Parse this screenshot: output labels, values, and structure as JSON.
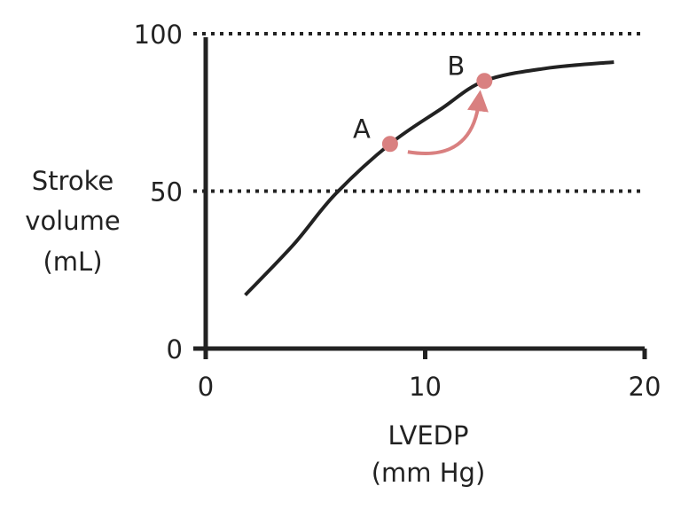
{
  "chart_data": {
    "type": "line",
    "title": "",
    "xlabel": [
      "LVEDP",
      "(mm Hg)"
    ],
    "ylabel": [
      "Stroke",
      "volume",
      "(mL)"
    ],
    "xlim": [
      0,
      20
    ],
    "ylim": [
      0,
      100
    ],
    "xticks": [
      0,
      10,
      20
    ],
    "yticks": [
      0,
      50,
      100
    ],
    "xtick_labels": [
      "0",
      "10",
      "20"
    ],
    "ytick_labels": [
      "0",
      "50",
      "100"
    ],
    "reference_lines": [
      50,
      100
    ],
    "grid": false,
    "series": [
      {
        "x": [
          1.8,
          4.0,
          5.9,
          8.4,
          10.7,
          12.7,
          15.5,
          18.6
        ],
        "y": [
          17,
          33,
          49,
          65,
          76,
          85,
          89,
          91
        ]
      }
    ],
    "points": [
      {
        "label": "A",
        "x": 8.4,
        "y": 65
      },
      {
        "label": "B",
        "x": 12.7,
        "y": 85
      }
    ],
    "annotation_arrow": {
      "from": "A",
      "to": "B"
    },
    "colors": {
      "curve": "#222222",
      "points": "#d98080",
      "axis": "#222222"
    }
  }
}
